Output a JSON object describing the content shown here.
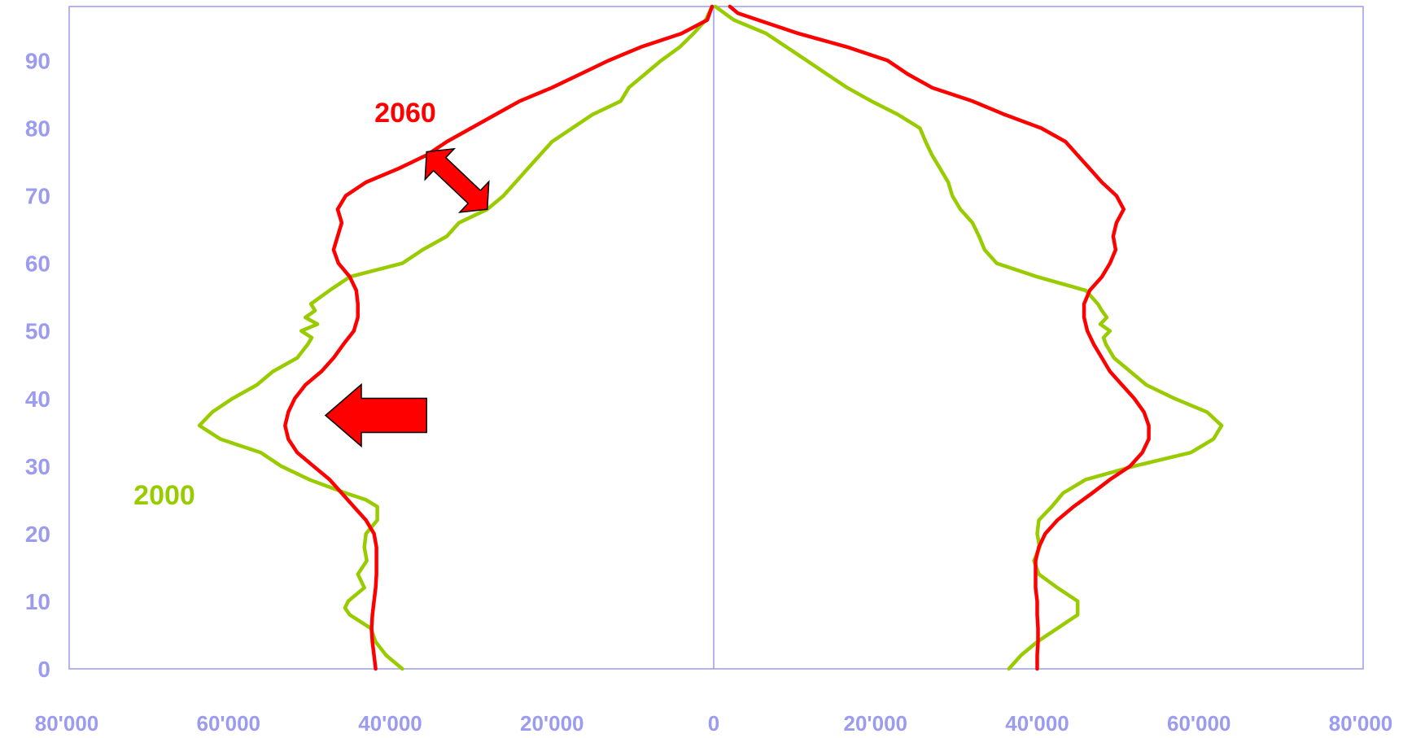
{
  "chart_data": {
    "type": "line",
    "title": "",
    "xlabel": "",
    "ylabel": "",
    "xlim": [
      -80000,
      80000
    ],
    "ylim": [
      0,
      98
    ],
    "x_ticks": [
      "80'000",
      "60'000",
      "40'000",
      "20'000",
      "0",
      "20'000",
      "40'000",
      "60'000",
      "80'000"
    ],
    "y_ticks": [
      "0",
      "10",
      "20",
      "30",
      "40",
      "50",
      "60",
      "70",
      "80",
      "90"
    ],
    "grid": false,
    "colors": {
      "axis": "#9b9bef",
      "series_2000": "#99cc00",
      "series_2060": "#ff0000",
      "arrow_fill": "#ff0000",
      "arrow_stroke": "#000000"
    },
    "series": [
      {
        "name": "2000",
        "label_color": "#99cc00",
        "left": [
          [
            0,
            38500
          ],
          [
            2,
            40500
          ],
          [
            4,
            41800
          ],
          [
            6,
            42400
          ],
          [
            8,
            45000
          ],
          [
            9,
            45600
          ],
          [
            10,
            45200
          ],
          [
            12,
            43200
          ],
          [
            14,
            44000
          ],
          [
            16,
            42900
          ],
          [
            18,
            43200
          ],
          [
            20,
            43000
          ],
          [
            22,
            41600
          ],
          [
            24,
            41600
          ],
          [
            25,
            43000
          ],
          [
            26,
            45500
          ],
          [
            28,
            50000
          ],
          [
            30,
            53500
          ],
          [
            32,
            56000
          ],
          [
            34,
            61000
          ],
          [
            36,
            63600
          ],
          [
            38,
            62000
          ],
          [
            40,
            59500
          ],
          [
            42,
            56500
          ],
          [
            44,
            54500
          ],
          [
            46,
            51500
          ],
          [
            48,
            50200
          ],
          [
            49,
            49700
          ],
          [
            50,
            51000
          ],
          [
            51,
            49000
          ],
          [
            52,
            50500
          ],
          [
            53,
            49300
          ],
          [
            54,
            49800
          ],
          [
            56,
            47500
          ],
          [
            58,
            45000
          ],
          [
            60,
            38500
          ],
          [
            62,
            36000
          ],
          [
            64,
            33000
          ],
          [
            66,
            31500
          ],
          [
            68,
            28000
          ],
          [
            70,
            26000
          ],
          [
            72,
            24500
          ],
          [
            74,
            23000
          ],
          [
            76,
            21500
          ],
          [
            78,
            20000
          ],
          [
            80,
            17500
          ],
          [
            82,
            15000
          ],
          [
            84,
            11500
          ],
          [
            86,
            10500
          ],
          [
            88,
            8500
          ],
          [
            90,
            6500
          ],
          [
            92,
            4200
          ],
          [
            94,
            2500
          ],
          [
            96,
            1000
          ],
          [
            98,
            200
          ]
        ],
        "right": [
          [
            0,
            36500
          ],
          [
            2,
            38000
          ],
          [
            4,
            40000
          ],
          [
            6,
            42500
          ],
          [
            8,
            45000
          ],
          [
            10,
            45000
          ],
          [
            12,
            42500
          ],
          [
            14,
            40200
          ],
          [
            16,
            39600
          ],
          [
            18,
            40300
          ],
          [
            20,
            40000
          ],
          [
            22,
            40200
          ],
          [
            24,
            41800
          ],
          [
            26,
            43200
          ],
          [
            28,
            46000
          ],
          [
            30,
            52000
          ],
          [
            32,
            59000
          ],
          [
            34,
            61800
          ],
          [
            36,
            62800
          ],
          [
            38,
            61000
          ],
          [
            40,
            57000
          ],
          [
            42,
            53500
          ],
          [
            44,
            51500
          ],
          [
            46,
            49500
          ],
          [
            48,
            48500
          ],
          [
            49,
            48200
          ],
          [
            50,
            49000
          ],
          [
            51,
            47800
          ],
          [
            52,
            48600
          ],
          [
            53,
            48000
          ],
          [
            54,
            47500
          ],
          [
            56,
            46000
          ],
          [
            58,
            40000
          ],
          [
            60,
            35000
          ],
          [
            62,
            33500
          ],
          [
            64,
            32800
          ],
          [
            66,
            32000
          ],
          [
            68,
            30500
          ],
          [
            70,
            29500
          ],
          [
            72,
            29000
          ],
          [
            74,
            28000
          ],
          [
            76,
            27000
          ],
          [
            78,
            26200
          ],
          [
            80,
            25500
          ],
          [
            82,
            22800
          ],
          [
            84,
            19500
          ],
          [
            86,
            16500
          ],
          [
            88,
            14000
          ],
          [
            90,
            11500
          ],
          [
            92,
            9000
          ],
          [
            94,
            6500
          ],
          [
            96,
            2500
          ],
          [
            98,
            200
          ]
        ]
      },
      {
        "name": "2060",
        "label_color": "#ff0000",
        "left": [
          [
            0,
            41800
          ],
          [
            2,
            42000
          ],
          [
            4,
            42200
          ],
          [
            6,
            42300
          ],
          [
            8,
            42200
          ],
          [
            10,
            42000
          ],
          [
            12,
            41800
          ],
          [
            14,
            41700
          ],
          [
            16,
            41700
          ],
          [
            18,
            41700
          ],
          [
            20,
            42000
          ],
          [
            22,
            43000
          ],
          [
            24,
            44500
          ],
          [
            26,
            46000
          ],
          [
            28,
            47500
          ],
          [
            30,
            49500
          ],
          [
            32,
            51500
          ],
          [
            34,
            52600
          ],
          [
            36,
            53000
          ],
          [
            38,
            52600
          ],
          [
            40,
            51800
          ],
          [
            42,
            50500
          ],
          [
            44,
            48500
          ],
          [
            46,
            47000
          ],
          [
            48,
            45800
          ],
          [
            50,
            44500
          ],
          [
            52,
            44000
          ],
          [
            54,
            44000
          ],
          [
            56,
            44200
          ],
          [
            58,
            45000
          ],
          [
            60,
            46400
          ],
          [
            62,
            47000
          ],
          [
            64,
            46500
          ],
          [
            66,
            46000
          ],
          [
            68,
            46500
          ],
          [
            70,
            45500
          ],
          [
            72,
            43000
          ],
          [
            74,
            39000
          ],
          [
            76,
            35500
          ],
          [
            78,
            33000
          ],
          [
            80,
            30000
          ],
          [
            82,
            27000
          ],
          [
            84,
            24000
          ],
          [
            86,
            20000
          ],
          [
            88,
            16500
          ],
          [
            90,
            13000
          ],
          [
            92,
            9000
          ],
          [
            94,
            4000
          ],
          [
            96,
            800
          ],
          [
            98,
            200
          ]
        ],
        "right": [
          [
            0,
            40000
          ],
          [
            2,
            40000
          ],
          [
            4,
            40100
          ],
          [
            6,
            40100
          ],
          [
            8,
            40000
          ],
          [
            10,
            40000
          ],
          [
            12,
            39800
          ],
          [
            14,
            39800
          ],
          [
            16,
            39800
          ],
          [
            18,
            40200
          ],
          [
            20,
            41000
          ],
          [
            22,
            42500
          ],
          [
            24,
            44500
          ],
          [
            26,
            46800
          ],
          [
            28,
            49000
          ],
          [
            30,
            51500
          ],
          [
            32,
            53000
          ],
          [
            34,
            53800
          ],
          [
            36,
            53800
          ],
          [
            38,
            53200
          ],
          [
            40,
            52000
          ],
          [
            42,
            50500
          ],
          [
            44,
            49000
          ],
          [
            46,
            48000
          ],
          [
            48,
            47000
          ],
          [
            50,
            46200
          ],
          [
            52,
            45800
          ],
          [
            54,
            45800
          ],
          [
            56,
            46500
          ],
          [
            58,
            48000
          ],
          [
            60,
            49000
          ],
          [
            62,
            49700
          ],
          [
            64,
            49400
          ],
          [
            66,
            49800
          ],
          [
            68,
            50700
          ],
          [
            70,
            49800
          ],
          [
            72,
            48000
          ],
          [
            74,
            46500
          ],
          [
            76,
            45000
          ],
          [
            78,
            43500
          ],
          [
            80,
            40500
          ],
          [
            82,
            36000
          ],
          [
            84,
            32000
          ],
          [
            86,
            27000
          ],
          [
            88,
            24000
          ],
          [
            90,
            21500
          ],
          [
            92,
            16500
          ],
          [
            94,
            10500
          ],
          [
            96,
            5500
          ],
          [
            97,
            3000
          ],
          [
            98,
            2000
          ]
        ]
      }
    ],
    "annotations": [
      {
        "type": "double-arrow",
        "from": [
          -35500,
          76.5
        ],
        "to": [
          -28000,
          68
        ]
      },
      {
        "type": "arrow-left",
        "from": [
          -35500,
          37.5
        ],
        "to": [
          -48000,
          37.5
        ]
      }
    ]
  }
}
